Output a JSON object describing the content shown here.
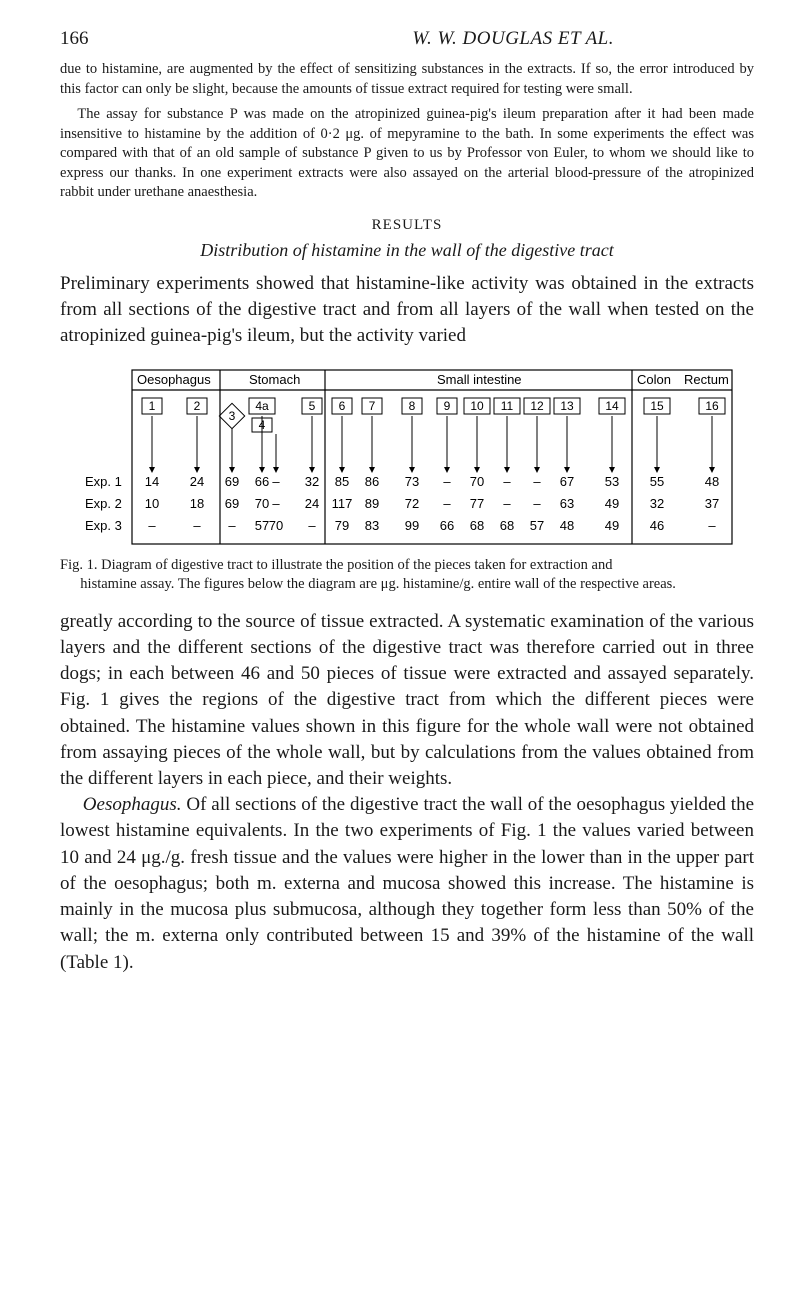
{
  "page": {
    "number": "166",
    "author_line": "W. W. DOUGLAS ET AL."
  },
  "intro": {
    "p1": "due to histamine, are augmented by the effect of sensitizing substances in the extracts. If so, the error introduced by this factor can only be slight, because the amounts of tissue extract required for testing were small.",
    "p2": "The assay for substance P was made on the atropinized guinea-pig's ileum preparation after it had been made insensitive to histamine by the addition of 0·2 μg. of mepyramine to the bath. In some experiments the effect was compared with that of an old sample of substance P given to us by Professor von Euler, to whom we should like to express our thanks. In one experiment extracts were also assayed on the arterial blood-pressure of the atropinized rabbit under urethane anaesthesia."
  },
  "headings": {
    "results": "RESULTS",
    "distribution": "Distribution of histamine in the wall of the digestive tract"
  },
  "prelim": "Preliminary experiments showed that histamine-like activity was obtained in the extracts from all sections of the digestive tract and from all layers of the wall when tested on the atropinized guinea-pig's ileum, but the activity varied",
  "diagram": {
    "type": "flow-table",
    "outer_stroke": "#000000",
    "background": "#ffffff",
    "font_family": "Helvetica",
    "label_fontsize": 13,
    "value_fontsize": 13,
    "headers": {
      "oesophagus": "Oesophagus",
      "stomach": "Stomach",
      "small_intestine": "Small intestine",
      "colon": "Colon",
      "rectum": "Rectum"
    },
    "top_boxes": [
      "1",
      "2",
      "3",
      "4a",
      "4",
      "5",
      "6",
      "7",
      "8",
      "9",
      "10",
      "11",
      "12",
      "13",
      "14",
      "15",
      "16"
    ],
    "row_labels": [
      "Exp. 1",
      "Exp. 2",
      "Exp. 3"
    ],
    "rows": {
      "exp1": [
        "14",
        "24",
        "69",
        "66",
        "–",
        "32",
        "85",
        "86",
        "73",
        "–",
        "70",
        "–",
        "–",
        "67",
        "53",
        "55",
        "48"
      ],
      "exp2": [
        "10",
        "18",
        "69",
        "70",
        "–",
        "24",
        "117",
        "89",
        "72",
        "–",
        "77",
        "–",
        "–",
        "63",
        "49",
        "32",
        "37"
      ],
      "exp3": [
        "–",
        "–",
        "–",
        "57",
        "70",
        "–",
        "79",
        "83",
        "99",
        "66",
        "68",
        "68",
        "57",
        "48",
        "49",
        "46",
        "–"
      ]
    }
  },
  "fig_caption": {
    "lead": "Fig. 1. Diagram of digestive tract to illustrate the position of the pieces taken for extraction and",
    "cont": "histamine assay. The figures below the diagram are μg. histamine/g. entire wall of the respective areas."
  },
  "body": {
    "p1": "greatly according to the source of tissue extracted. A systematic examination of the various layers and the different sections of the digestive tract was therefore carried out in three dogs; in each between 46 and 50 pieces of tissue were extracted and assayed separately. Fig. 1 gives the regions of the digestive tract from which the different pieces were obtained. The histamine values shown in this figure for the whole wall were not obtained from assaying pieces of the whole wall, but by calculations from the values obtained from the different layers in each piece, and their weights.",
    "p2a": "Oesophagus.",
    "p2b": " Of all sections of the digestive tract the wall of the oesophagus yielded the lowest histamine equivalents. In the two experiments of Fig. 1 the values varied between 10 and 24 μg./g. fresh tissue and the values were higher in the lower than in the upper part of the oesophagus; both m. externa and mucosa showed this increase. The histamine is mainly in the mucosa plus submucosa, although they together form less than 50% of the wall; the m. externa only contributed between 15 and 39% of the histamine of the wall (Table 1)."
  }
}
